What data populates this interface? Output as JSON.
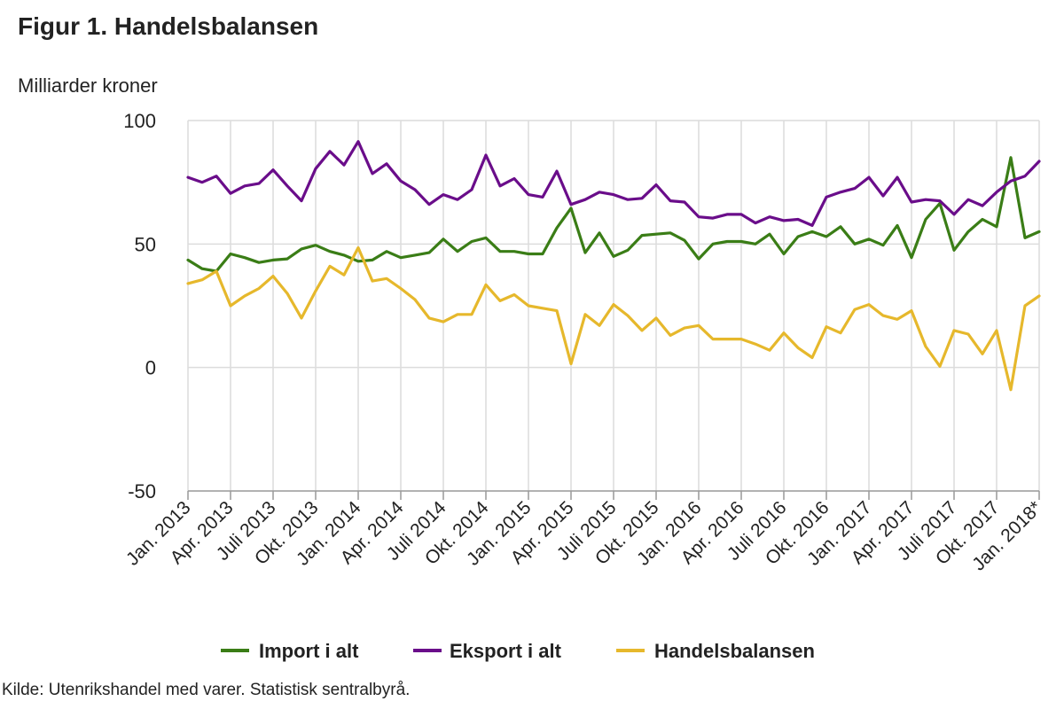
{
  "title": "Figur 1. Handelsbalansen",
  "source": "Kilde: Utenrikshandel med varer. Statistisk sentralbyrå.",
  "chart_data": {
    "type": "line",
    "title": "Figur 1. Handelsbalansen",
    "ylabel": "Milliarder kroner",
    "xlabel": "",
    "ylim": [
      -50,
      100
    ],
    "yticks": [
      -50,
      0,
      50,
      100
    ],
    "grid": true,
    "legend_position": "bottom",
    "x_tick_every": 3,
    "x_tick_labels": [
      "Jan. 2013",
      "Apr. 2013",
      "Juli 2013",
      "Okt. 2013",
      "Jan. 2014",
      "Apr. 2014",
      "Juli 2014",
      "Okt. 2014",
      "Jan. 2015",
      "Apr. 2015",
      "Juli 2015",
      "Okt. 2015",
      "Jan. 2016",
      "Apr. 2016",
      "Juli 2016",
      "Okt. 2016",
      "Jan. 2017",
      "Apr. 2017",
      "Juli 2017",
      "Okt. 2017",
      "Jan. 2018*"
    ],
    "series": [
      {
        "name": "Import i alt",
        "color": "#3a7d16",
        "values": [
          43.5,
          40,
          39,
          46,
          44.5,
          42.5,
          43.5,
          44,
          48,
          49.5,
          47,
          45.5,
          43,
          43.5,
          47,
          44.5,
          45.5,
          46.5,
          52,
          47,
          51,
          52.5,
          47,
          47,
          46,
          46,
          56.5,
          64.5,
          46.5,
          54.5,
          45,
          47.5,
          53.5,
          54,
          54.5,
          51.5,
          44,
          50,
          51,
          51,
          50,
          54,
          46,
          53,
          55,
          53,
          57,
          50,
          52,
          49.5,
          57.5,
          44.5,
          60,
          66.5,
          47.5,
          55,
          60,
          57,
          85,
          52.5,
          55
        ]
      },
      {
        "name": "Eksport i alt",
        "color": "#6a0d8a",
        "values": [
          77,
          75,
          77.5,
          70.5,
          73.5,
          74.5,
          80,
          73.5,
          67.5,
          80.5,
          87.5,
          82,
          91.5,
          78.5,
          82.5,
          75.5,
          72,
          66,
          70,
          68,
          72,
          86,
          73.5,
          76.5,
          70,
          69,
          79.5,
          66,
          68,
          71,
          70,
          68,
          68.5,
          74,
          67.5,
          67,
          61,
          60.5,
          62,
          62,
          58.5,
          61,
          59.5,
          60,
          57.5,
          69,
          71,
          72.5,
          77,
          69.5,
          77,
          67,
          68,
          67.5,
          62,
          68,
          65.5,
          71,
          75.5,
          77.5,
          83.5
        ]
      },
      {
        "name": "Handelsbalansen",
        "color": "#e6b82c",
        "values": [
          34,
          35.5,
          39,
          25,
          29,
          32,
          37,
          30,
          20,
          31,
          41,
          37.5,
          48.5,
          35,
          36,
          32,
          27.5,
          20,
          18.5,
          21.5,
          21.5,
          33.5,
          27,
          29.5,
          25,
          24,
          23,
          1.5,
          21.5,
          17,
          25.5,
          21,
          15,
          20,
          13,
          16,
          17,
          11.5,
          11.5,
          11.5,
          9.5,
          7,
          14,
          8,
          4,
          16.5,
          14,
          23.5,
          25.5,
          21,
          19.5,
          23,
          8.5,
          0.5,
          15,
          13.5,
          5.5,
          15,
          -9,
          25,
          29
        ]
      }
    ]
  }
}
